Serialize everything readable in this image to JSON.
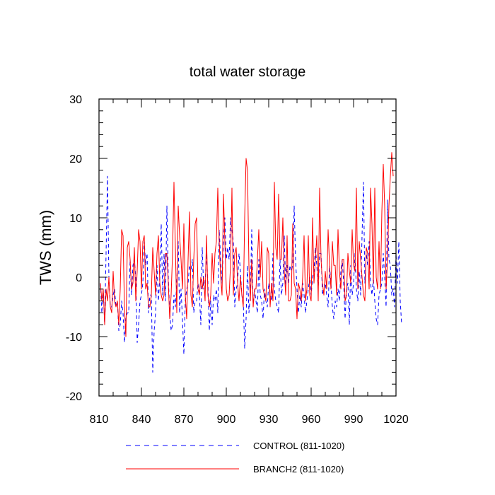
{
  "chart_data": {
    "type": "line",
    "title": "total water storage",
    "xlabel": "",
    "ylabel": "TWS  (mm)",
    "xlim": [
      810,
      1020
    ],
    "ylim": [
      -20,
      30
    ],
    "xticks": [
      810,
      840,
      870,
      900,
      930,
      960,
      990,
      1020
    ],
    "yticks": [
      -20,
      -10,
      0,
      10,
      20,
      30
    ],
    "xtick_labels": [
      "810",
      "840",
      "870",
      "900",
      "930",
      "960",
      "990",
      "1020"
    ],
    "ytick_labels": [
      "-20",
      "-10",
      "0",
      "10",
      "20",
      "30"
    ],
    "grid": false,
    "legend_position": "bottom",
    "series": [
      {
        "name": "CONTROL (811-1020)",
        "color": "#0000ff",
        "style": "dashed",
        "x_start": 811,
        "values": [
          -1,
          -6,
          -2,
          -8,
          4,
          17,
          0,
          -5,
          -5,
          -3,
          -2,
          -5,
          -4,
          -9,
          -8,
          -4,
          -6,
          -11,
          -7,
          -6,
          -6,
          3,
          -3,
          2,
          3,
          0,
          -11,
          -8,
          -4,
          -3,
          -1,
          6,
          2,
          4,
          -6,
          -3,
          -3,
          -16,
          -9,
          -6,
          2,
          -4,
          0,
          9,
          -3,
          4,
          -4,
          12,
          0,
          -6,
          -9,
          -8,
          -3,
          -5,
          -1,
          6,
          -6,
          -2,
          -7,
          -13,
          -4,
          -2,
          -1,
          2,
          1,
          3,
          -6,
          -4,
          -4,
          -1,
          -3,
          -8,
          5,
          -2,
          -1,
          4,
          -1,
          -9,
          -4,
          -8,
          -3,
          -4,
          -2,
          -6,
          8,
          3,
          -1,
          6,
          10,
          3,
          5,
          3,
          10,
          8,
          6,
          -5,
          -2,
          -1,
          4,
          1,
          -3,
          -4,
          -12,
          -7,
          2,
          -6,
          -3,
          8,
          -5,
          -2,
          -4,
          -6,
          3,
          -3,
          -4,
          -7,
          -2,
          -4,
          -5,
          -1,
          -3,
          -4,
          4,
          -2,
          -4,
          -5,
          -6,
          3,
          -3,
          -1,
          7,
          -2,
          2,
          -1,
          2,
          1,
          2,
          12,
          3,
          -2,
          -6,
          -3,
          -5,
          -1,
          -3,
          -6,
          -4,
          -2,
          0,
          -3,
          0,
          1,
          5,
          2,
          -2,
          4,
          4,
          -3,
          -2,
          -1,
          -3,
          -5,
          2,
          -1,
          -5,
          -7,
          -4,
          -5,
          -2,
          -4,
          1,
          3,
          -1,
          -7,
          -2,
          -1,
          -8,
          2,
          -3,
          -1,
          4,
          -2,
          -4,
          1,
          -3,
          7,
          16,
          -1,
          4,
          2,
          6,
          -1,
          -3,
          0,
          -4,
          -7,
          -8,
          -3,
          -2,
          -1,
          4,
          0,
          -5,
          13,
          3,
          2,
          -3,
          -2,
          -5,
          4,
          -1,
          6,
          -4,
          -8
        ]
      },
      {
        "name": "BRANCH2 (811-1020)",
        "color": "#ff0000",
        "style": "solid",
        "x_start": 811,
        "values": [
          -1,
          -4,
          -2,
          -8,
          -2,
          -4,
          0,
          -5,
          -6,
          1,
          -4,
          -5,
          -4,
          -8,
          -2,
          8,
          7,
          -5,
          -10,
          5,
          6,
          3,
          -2,
          -1,
          5,
          -4,
          1,
          8,
          6,
          -2,
          6,
          7,
          -2,
          -1,
          -5,
          -5,
          -3,
          5,
          1,
          -3,
          4,
          7,
          -1,
          -3,
          -4,
          -3,
          4,
          4,
          -1,
          -7,
          -3,
          4,
          16,
          5,
          -6,
          12,
          7,
          3,
          -2,
          9,
          -3,
          -7,
          3,
          11,
          -3,
          -5,
          3,
          9,
          10,
          -2,
          -3,
          0,
          -2,
          0,
          -4,
          7,
          -3,
          -5,
          -3,
          4,
          -1,
          4,
          6,
          15,
          6,
          0,
          -3,
          14,
          6,
          -2,
          -4,
          -3,
          2,
          15,
          -3,
          4,
          5,
          -1,
          -4,
          0,
          -3,
          -5,
          10,
          20,
          18,
          2,
          -4,
          3,
          -5,
          -2,
          -2,
          3,
          8,
          0,
          6,
          -2,
          -3,
          -4,
          5,
          4,
          -5,
          -1,
          -4,
          16,
          5,
          3,
          14,
          3,
          3,
          10,
          1,
          -3,
          7,
          -4,
          -4,
          -3,
          9,
          -1,
          -2,
          -7,
          -1,
          -2,
          -4,
          0,
          7,
          -4,
          -2,
          7,
          -3,
          -4,
          10,
          -1,
          3,
          7,
          -4,
          15,
          3,
          -1,
          -3,
          1,
          -2,
          8,
          2,
          -2,
          6,
          2,
          2,
          -3,
          8,
          1,
          -2,
          3,
          3,
          -4,
          -3,
          4,
          1,
          -1,
          8,
          2,
          1,
          15,
          -2,
          6,
          3,
          0,
          -3,
          -4,
          5,
          4,
          -2,
          15,
          9,
          -1,
          15,
          0,
          -2,
          6,
          -2,
          11,
          19,
          12,
          -2,
          3,
          12,
          17,
          21,
          17
        ]
      }
    ]
  }
}
